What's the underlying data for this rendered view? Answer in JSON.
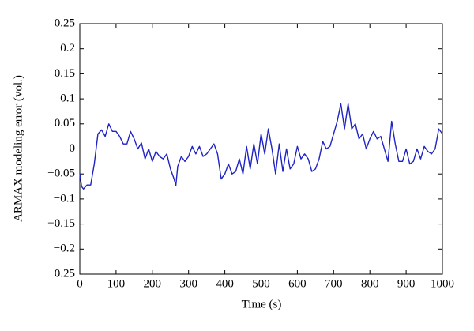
{
  "chart_data": {
    "type": "line",
    "xlabel": "Time (s)",
    "ylabel": "ARMAX modeling error (vol.)",
    "x": [
      0,
      5,
      10,
      20,
      30,
      40,
      50,
      60,
      70,
      80,
      90,
      100,
      110,
      120,
      130,
      140,
      150,
      160,
      170,
      180,
      190,
      200,
      210,
      220,
      230,
      240,
      250,
      260,
      265,
      270,
      280,
      290,
      300,
      310,
      320,
      330,
      340,
      350,
      360,
      370,
      380,
      390,
      400,
      410,
      420,
      430,
      440,
      450,
      460,
      470,
      480,
      490,
      500,
      510,
      520,
      530,
      540,
      550,
      560,
      570,
      580,
      590,
      600,
      610,
      620,
      630,
      640,
      650,
      660,
      670,
      680,
      690,
      700,
      710,
      720,
      730,
      740,
      750,
      760,
      770,
      780,
      790,
      800,
      810,
      820,
      830,
      840,
      850,
      860,
      870,
      880,
      890,
      900,
      910,
      920,
      930,
      940,
      950,
      960,
      970,
      980,
      990,
      1000
    ],
    "series": [
      {
        "color": "#1f23c4",
        "values": [
          -0.05,
          -0.075,
          -0.08,
          -0.072,
          -0.072,
          -0.03,
          0.03,
          0.038,
          0.025,
          0.05,
          0.035,
          0.035,
          0.025,
          0.01,
          0.01,
          0.035,
          0.02,
          0.0,
          0.012,
          -0.02,
          0.0,
          -0.025,
          -0.005,
          -0.015,
          -0.02,
          -0.01,
          -0.04,
          -0.06,
          -0.073,
          -0.035,
          -0.015,
          -0.025,
          -0.015,
          0.005,
          -0.01,
          0.005,
          -0.015,
          -0.01,
          0.0,
          0.01,
          -0.01,
          -0.06,
          -0.05,
          -0.03,
          -0.05,
          -0.045,
          -0.02,
          -0.05,
          0.005,
          -0.04,
          0.01,
          -0.03,
          0.03,
          -0.01,
          0.04,
          0.0,
          -0.05,
          0.01,
          -0.045,
          0.0,
          -0.04,
          -0.03,
          0.005,
          -0.02,
          -0.01,
          -0.02,
          -0.045,
          -0.04,
          -0.02,
          0.015,
          0.0,
          0.005,
          0.03,
          0.055,
          0.09,
          0.04,
          0.09,
          0.04,
          0.05,
          0.02,
          0.03,
          0.0,
          0.02,
          0.035,
          0.02,
          0.025,
          0.0,
          -0.025,
          0.055,
          0.01,
          -0.025,
          -0.025,
          0.0,
          -0.03,
          -0.025,
          0.0,
          -0.02,
          0.005,
          -0.005,
          -0.01,
          0.0,
          0.04,
          0.03
        ]
      }
    ],
    "xlim": [
      0,
      1000
    ],
    "xticks": [
      0,
      100,
      200,
      300,
      400,
      500,
      600,
      700,
      800,
      900,
      1000
    ],
    "ylim": [
      -0.25,
      0.25
    ],
    "yticks": [
      {
        "value": -0.25,
        "label": "−0.25"
      },
      {
        "value": -0.2,
        "label": "−0.2"
      },
      {
        "value": -0.15,
        "label": "−0.15"
      },
      {
        "value": -0.1,
        "label": "−0.1"
      },
      {
        "value": -0.05,
        "label": "−0.05"
      },
      0,
      0.05,
      0.1,
      0.15,
      0.2,
      0.25
    ]
  }
}
